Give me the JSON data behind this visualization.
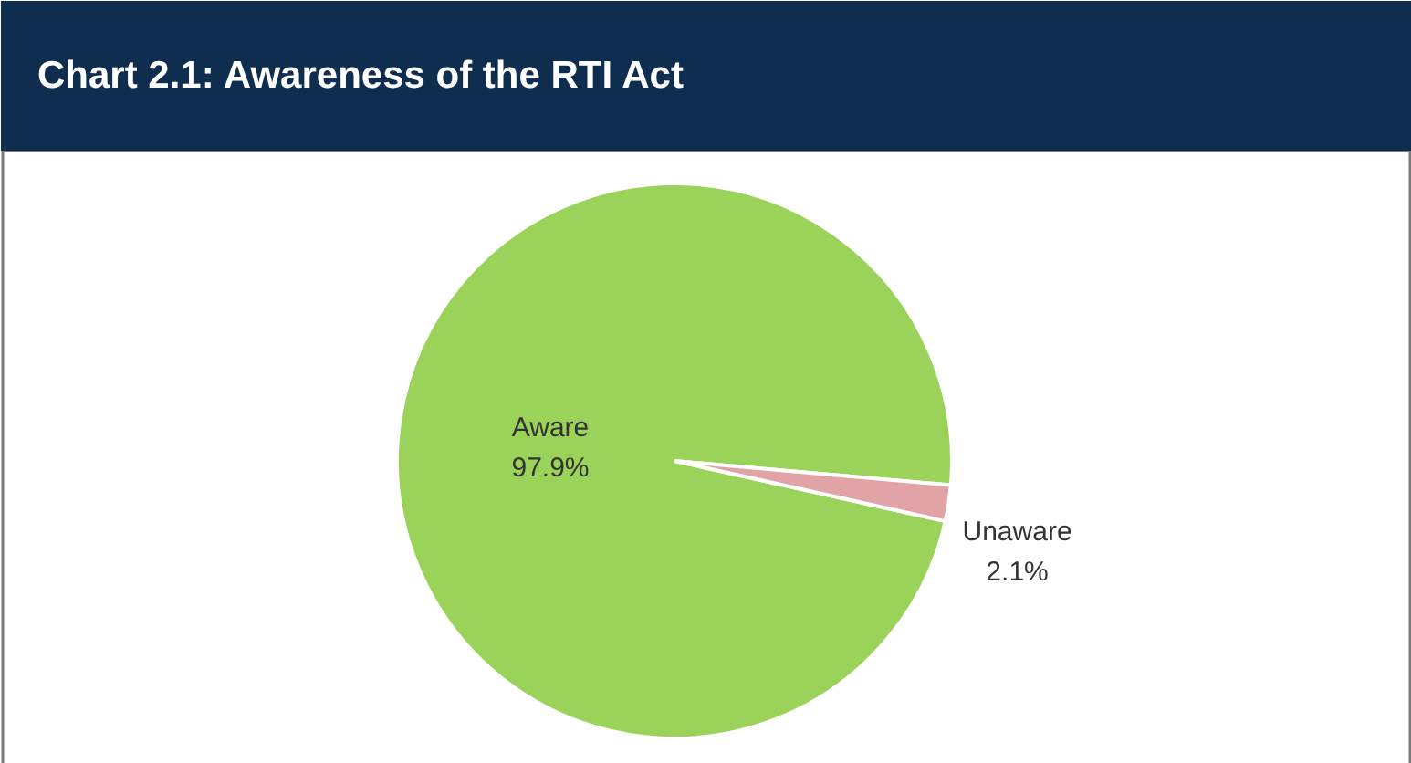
{
  "chart_data": {
    "type": "pie",
    "title": "Chart 2.1: Awareness of the RTI Act",
    "categories": [
      "Aware",
      "Unaware"
    ],
    "values": [
      97.9,
      2.1
    ],
    "colors": [
      "#9bd35a",
      "#e2a3a7"
    ],
    "value_labels": [
      "97.9%",
      "2.1%"
    ]
  }
}
